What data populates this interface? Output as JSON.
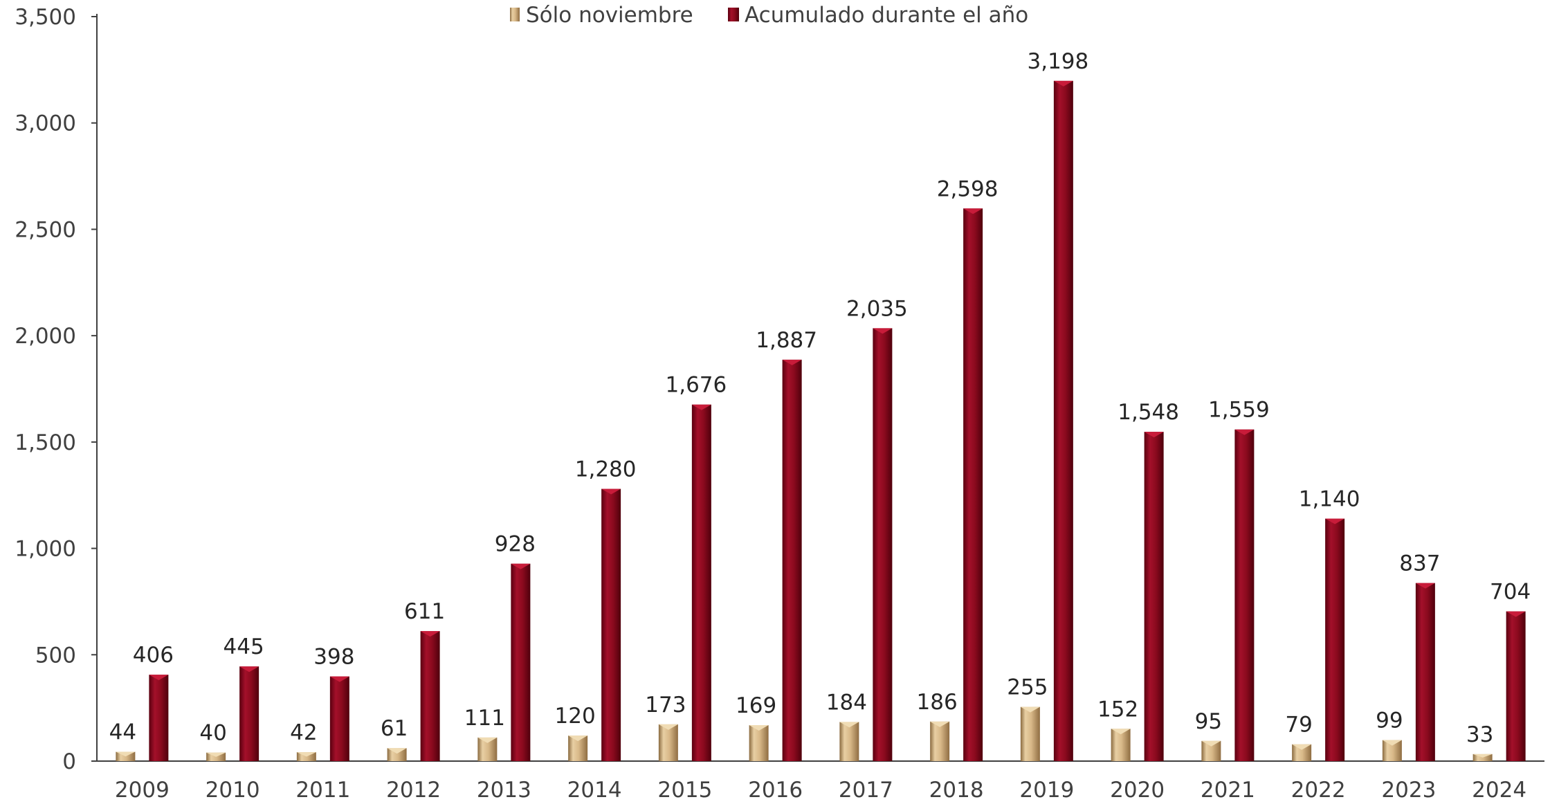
{
  "chart_data": {
    "type": "bar",
    "categories": [
      "2009",
      "2010",
      "2011",
      "2012",
      "2013",
      "2014",
      "2015",
      "2016",
      "2017",
      "2018",
      "2019",
      "2020",
      "2021",
      "2022",
      "2023",
      "2024"
    ],
    "series": [
      {
        "name": "Sólo noviembre",
        "values": [
          44,
          40,
          42,
          61,
          111,
          120,
          173,
          169,
          184,
          186,
          255,
          152,
          95,
          79,
          99,
          33
        ],
        "color": "#c9a678"
      },
      {
        "name": "Acumulado durante el año",
        "values": [
          406,
          445,
          398,
          611,
          928,
          1280,
          1676,
          1887,
          2035,
          2598,
          3198,
          1548,
          1559,
          1140,
          837,
          704
        ],
        "color": "#8b0a1e"
      }
    ],
    "data_labels": {
      "Sólo noviembre": [
        "44",
        "40",
        "42",
        "61",
        "111",
        "120",
        "173",
        "169",
        "184",
        "186",
        "255",
        "152",
        "95",
        "79",
        "99",
        "33"
      ],
      "Acumulado durante el año": [
        "406",
        "445",
        "398",
        "611",
        "928",
        "1,280",
        "1,676",
        "1,887",
        "2,035",
        "2,598",
        "3,198",
        "1,548",
        "1,559",
        "1,140",
        "837",
        "704"
      ]
    },
    "y_ticks": [
      "0",
      "500",
      "1,000",
      "1,500",
      "2,000",
      "2,500",
      "3,000",
      "3,500"
    ],
    "ylim": [
      0,
      3500
    ],
    "legend_position": "top-center",
    "grid": false
  }
}
